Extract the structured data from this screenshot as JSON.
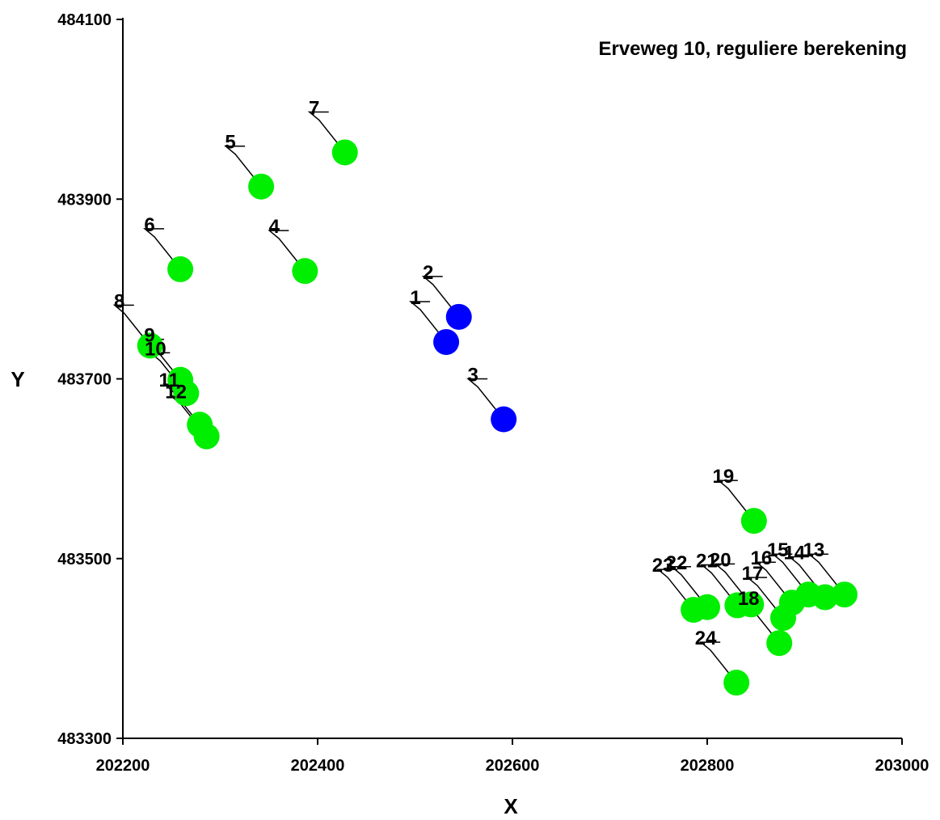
{
  "chart_data": {
    "type": "scatter",
    "title": "Erveweg 10, reguliere berekening",
    "xlabel": "X",
    "ylabel": "Y",
    "xlim": [
      202200,
      203000
    ],
    "ylim": [
      483300,
      484100
    ],
    "xticks": [
      202200,
      202400,
      202600,
      202800,
      203000
    ],
    "yticks": [
      483300,
      483500,
      483700,
      483900,
      484100
    ],
    "xtick_labels": [
      "202200",
      "202400",
      "202600",
      "202800",
      "203000"
    ],
    "ytick_labels": [
      "483300",
      "483500",
      "483700",
      "483900",
      "484100"
    ],
    "grid": false,
    "legend": "none",
    "colors": {
      "blue": "#0000ff",
      "green": "#00ee00",
      "leader": "#000000"
    },
    "series": [
      {
        "color": "blue",
        "points": [
          {
            "label": "1",
            "x": 202532,
            "y": 483741
          },
          {
            "label": "2",
            "x": 202545,
            "y": 483769
          },
          {
            "label": "3",
            "x": 202591,
            "y": 483655
          }
        ]
      },
      {
        "color": "green",
        "points": [
          {
            "label": "4",
            "x": 202387,
            "y": 483820
          },
          {
            "label": "5",
            "x": 202342,
            "y": 483914
          },
          {
            "label": "6",
            "x": 202259,
            "y": 483822
          },
          {
            "label": "7",
            "x": 202428,
            "y": 483952
          },
          {
            "label": "8",
            "x": 202228,
            "y": 483737
          },
          {
            "label": "9",
            "x": 202259,
            "y": 483699
          },
          {
            "label": "10",
            "x": 202265,
            "y": 483684
          },
          {
            "label": "11",
            "x": 202279,
            "y": 483649
          },
          {
            "label": "12",
            "x": 202286,
            "y": 483636
          },
          {
            "label": "13",
            "x": 202941,
            "y": 483460
          },
          {
            "label": "14",
            "x": 202921,
            "y": 483457
          },
          {
            "label": "15",
            "x": 202904,
            "y": 483460
          },
          {
            "label": "16",
            "x": 202887,
            "y": 483451
          },
          {
            "label": "17",
            "x": 202878,
            "y": 483434
          },
          {
            "label": "18",
            "x": 202874,
            "y": 483406
          },
          {
            "label": "19",
            "x": 202848,
            "y": 483542
          },
          {
            "label": "20",
            "x": 202845,
            "y": 483449
          },
          {
            "label": "21",
            "x": 202831,
            "y": 483448
          },
          {
            "label": "22",
            "x": 202800,
            "y": 483446
          },
          {
            "label": "23",
            "x": 202786,
            "y": 483443
          },
          {
            "label": "24",
            "x": 202830,
            "y": 483362
          }
        ]
      }
    ]
  }
}
